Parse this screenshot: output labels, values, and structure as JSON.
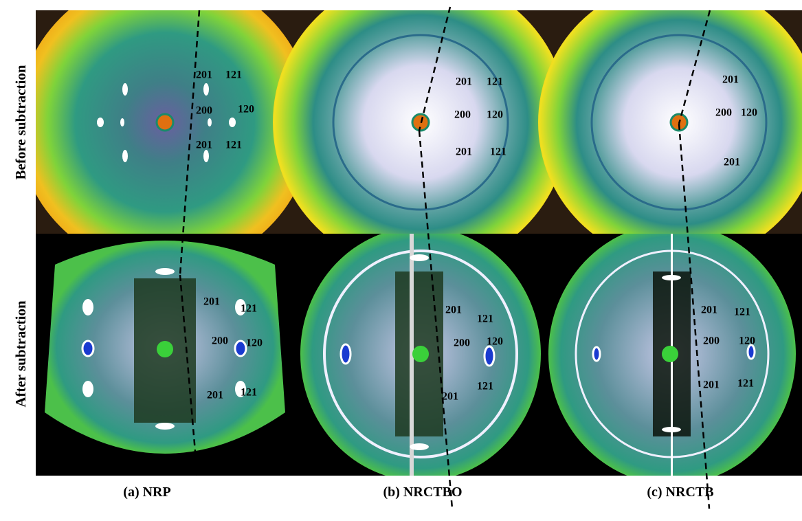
{
  "row_labels": [
    "Before subtraction",
    "After subtraction"
  ],
  "panels": [
    {
      "caption": "(a) NRP",
      "before": [
        "201",
        "121",
        "200",
        "120",
        "201",
        "121"
      ],
      "after": [
        "201",
        "121",
        "200",
        "120",
        "201",
        "121"
      ]
    },
    {
      "caption": "(b) NRCTBO",
      "before": [
        "201",
        "121",
        "200",
        "120",
        "201",
        "121"
      ],
      "after": [
        "201",
        "121",
        "200",
        "120",
        "121",
        "201"
      ]
    },
    {
      "caption": "(c) NRCTB",
      "before": [
        "201",
        "200",
        "120",
        "201"
      ],
      "after": [
        "201",
        "121",
        "200",
        "120",
        "201",
        "121"
      ]
    }
  ]
}
